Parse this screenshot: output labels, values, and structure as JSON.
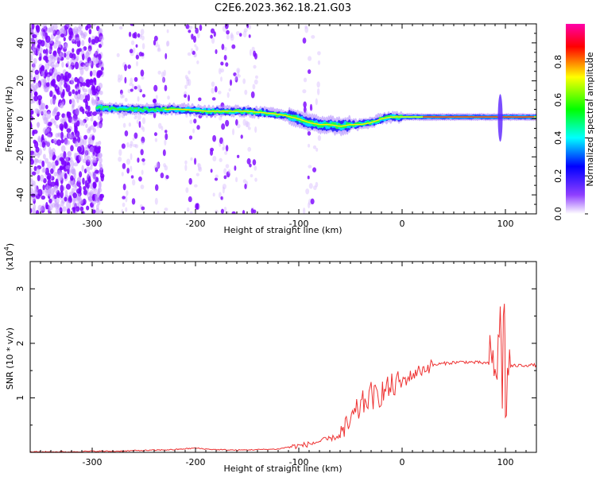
{
  "title": "C2E6.2023.362.18.21.G03",
  "chart_data": [
    {
      "type": "heatmap",
      "xlabel": "Height of straight line (km)",
      "ylabel": "Frequency (Hz)",
      "xlim": [
        -360,
        130
      ],
      "ylim": [
        -50,
        50
      ],
      "x_ticks": [
        "-300",
        "-200",
        "-100",
        "0",
        "100"
      ],
      "y_ticks": [
        "-40",
        "-20",
        "0",
        "20",
        "40"
      ],
      "colorbar": {
        "label": "Normalized spectral amplitude",
        "range": [
          0,
          1
        ],
        "ticks": [
          "0.0",
          "0.2",
          "0.4",
          "0.6",
          "0.8"
        ],
        "colors": [
          "#ffffff",
          "#7f00ff",
          "#0000ff",
          "#00ffff",
          "#00ff00",
          "#ffff00",
          "#ff0000",
          "#ff00ff"
        ]
      },
      "ridge": [
        {
          "x": -295,
          "y": 6
        },
        {
          "x": -270,
          "y": 5
        },
        {
          "x": -250,
          "y": 5
        },
        {
          "x": -230,
          "y": 5
        },
        {
          "x": -210,
          "y": 5
        },
        {
          "x": -190,
          "y": 4
        },
        {
          "x": -170,
          "y": 4
        },
        {
          "x": -150,
          "y": 4
        },
        {
          "x": -130,
          "y": 3
        },
        {
          "x": -115,
          "y": 2
        },
        {
          "x": -100,
          "y": 0
        },
        {
          "x": -90,
          "y": -2
        },
        {
          "x": -80,
          "y": -3
        },
        {
          "x": -70,
          "y": -3
        },
        {
          "x": -60,
          "y": -4
        },
        {
          "x": -50,
          "y": -3
        },
        {
          "x": -40,
          "y": -3
        },
        {
          "x": -30,
          "y": -2
        },
        {
          "x": -20,
          "y": 0
        },
        {
          "x": -10,
          "y": 1
        },
        {
          "x": 0,
          "y": 1
        },
        {
          "x": 20,
          "y": 1
        },
        {
          "x": 40,
          "y": 1
        },
        {
          "x": 60,
          "y": 1
        },
        {
          "x": 80,
          "y": 1
        },
        {
          "x": 100,
          "y": 1
        },
        {
          "x": 130,
          "y": 1
        }
      ],
      "features": [
        {
          "x": 95,
          "y_min": -12,
          "y_max": 13
        }
      ]
    },
    {
      "type": "line",
      "xlabel": "Height of straight line (km)",
      "ylabel": "SNR (10 * v/v)",
      "y_scale_label": "(x10",
      "y_scale_exponent": "4",
      "xlim": [
        -360,
        130
      ],
      "ylim": [
        0,
        3.5
      ],
      "x_ticks": [
        "-300",
        "-200",
        "-100",
        "0",
        "100"
      ],
      "y_ticks": [
        "1",
        "2",
        "3"
      ],
      "color": "#ee3333",
      "series": [
        {
          "x": [
            -360,
            -340,
            -320,
            -300,
            -280,
            -260,
            -240,
            -220,
            -200,
            -190,
            -180,
            -160,
            -140,
            -120,
            -110,
            -100,
            -90,
            -80,
            -70,
            -60,
            -55,
            -50,
            -45,
            -40,
            -35,
            -30,
            -25,
            -20,
            -15,
            -10,
            -5,
            0,
            5,
            10,
            15,
            20,
            25,
            30,
            40,
            50,
            60,
            70,
            80,
            85,
            90,
            93,
            95,
            97,
            99,
            100,
            102,
            105,
            110,
            120,
            130
          ],
          "y": [
            0.01,
            0.01,
            0.01,
            0.02,
            0.02,
            0.03,
            0.04,
            0.05,
            0.08,
            0.06,
            0.05,
            0.04,
            0.05,
            0.06,
            0.1,
            0.12,
            0.15,
            0.2,
            0.25,
            0.3,
            0.4,
            0.55,
            0.7,
            0.85,
            0.95,
            1.05,
            1.0,
            1.1,
            1.15,
            1.2,
            1.25,
            1.3,
            1.35,
            1.42,
            1.48,
            1.52,
            1.56,
            1.6,
            1.63,
            1.65,
            1.66,
            1.65,
            1.64,
            1.62,
            1.6,
            1.7,
            2.5,
            1.2,
            3.2,
            0.3,
            1.6,
            1.58,
            1.59,
            1.6,
            1.6
          ]
        }
      ]
    }
  ]
}
